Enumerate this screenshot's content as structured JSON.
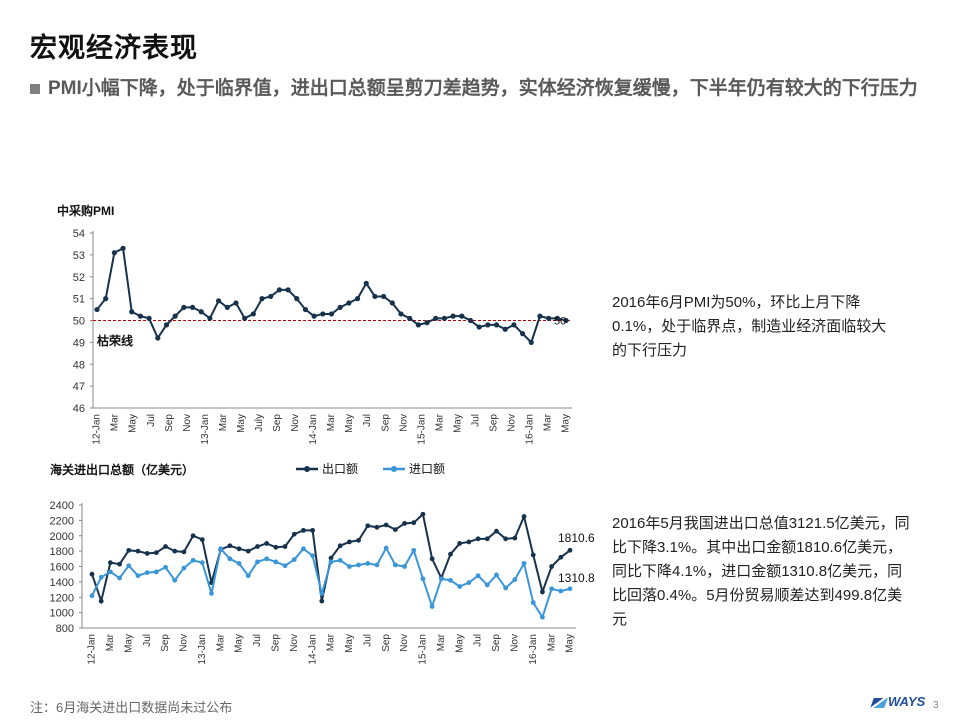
{
  "page": {
    "title": "宏观经济表现",
    "subtitle": "PMI小幅下降，处于临界值，进出口总额呈剪刀差趋势，实体经济恢复缓慢，下半年仍有较大的下行压力",
    "footnote": "注：6月海关进出口数据尚未过公布",
    "logo": "WAYS",
    "page_number": "3"
  },
  "notes": {
    "pmi": "2016年6月PMI为50%，环比上月下降0.1%，处于临界点，制造业经济面临较大的下行压力",
    "trade": "2016年5月我国进出口总值3121.5亿美元，同比下降3.1%。其中出口金额1810.6亿美元，同比下降4.1%，进口金额1310.8亿美元，同比回落0.4%。5月份贸易顺差达到499.8亿美元"
  },
  "colors": {
    "export": "#17324d",
    "import": "#3a96d8",
    "threshold": "#c00000",
    "axis": "#888888"
  },
  "chart_data": [
    {
      "type": "line",
      "title": "中采购PMI",
      "ylim": [
        46,
        54
      ],
      "yticks": [
        46,
        47,
        48,
        49,
        50,
        51,
        52,
        53,
        54
      ],
      "x_tick_labels": [
        "12-Jan",
        "Mar",
        "May",
        "Jul",
        "Sep",
        "Nov",
        "13-Jan",
        "Mar",
        "May",
        "July",
        "Sep",
        "Nov",
        "14-Jan",
        "Mar",
        "May",
        "Jul",
        "Sep",
        "Nov",
        "15-Jan",
        "Mar",
        "May",
        "Jul",
        "Sep",
        "Nov",
        "16-Jan",
        "Mar",
        "May"
      ],
      "threshold": {
        "value": 50,
        "label": "枯荣线"
      },
      "end_label": "50",
      "series": [
        {
          "values": [
            50.5,
            51.0,
            53.1,
            53.3,
            50.4,
            50.2,
            50.1,
            49.2,
            49.8,
            50.2,
            50.6,
            50.6,
            50.4,
            50.1,
            50.9,
            50.6,
            50.8,
            50.1,
            50.3,
            51.0,
            51.1,
            51.4,
            51.4,
            51.0,
            50.5,
            50.2,
            50.3,
            50.3,
            50.6,
            50.8,
            51.0,
            51.7,
            51.1,
            51.1,
            50.8,
            50.3,
            50.1,
            49.8,
            49.9,
            50.1,
            50.1,
            50.2,
            50.2,
            50.0,
            49.7,
            49.8,
            49.8,
            49.6,
            49.8,
            49.4,
            49.0,
            50.2,
            50.1,
            50.1,
            50.0
          ]
        }
      ]
    },
    {
      "type": "line",
      "title": "海关进出口总额（亿美元）",
      "ylim": [
        800,
        2400
      ],
      "yticks": [
        800,
        1000,
        1200,
        1400,
        1600,
        1800,
        2000,
        2200,
        2400
      ],
      "x_tick_labels": [
        "12-Jan",
        "Mar",
        "May",
        "Jul",
        "Sep",
        "Nov",
        "13-Jan",
        "Mar",
        "May",
        "Jul",
        "Sep",
        "Nov",
        "14-Jan",
        "Mar",
        "May",
        "Jul",
        "Sep",
        "Nov",
        "15-Jan",
        "Mar",
        "May",
        "Jul",
        "Sep",
        "Nov",
        "16-Jan",
        "Mar",
        "May"
      ],
      "end_labels": {
        "export": "1810.6",
        "import": "1310.8"
      },
      "series": [
        {
          "name": "出口额",
          "key": "export",
          "values": [
            1500,
            1150,
            1650,
            1630,
            1810,
            1800,
            1770,
            1780,
            1860,
            1800,
            1790,
            2000,
            1950,
            1390,
            1820,
            1870,
            1830,
            1800,
            1860,
            1900,
            1850,
            1860,
            2020,
            2070,
            2070,
            1150,
            1710,
            1870,
            1920,
            1940,
            2130,
            2110,
            2140,
            2080,
            2160,
            2170,
            2280,
            1700,
            1450,
            1760,
            1900,
            1920,
            1960,
            1960,
            2060,
            1960,
            1970,
            2250,
            1750,
            1270,
            1600,
            1720,
            1810.6
          ]
        },
        {
          "name": "进口额",
          "key": "import",
          "values": [
            1220,
            1460,
            1530,
            1450,
            1610,
            1480,
            1520,
            1530,
            1590,
            1420,
            1580,
            1680,
            1650,
            1250,
            1830,
            1700,
            1640,
            1480,
            1660,
            1700,
            1660,
            1610,
            1690,
            1830,
            1740,
            1250,
            1660,
            1680,
            1600,
            1620,
            1640,
            1620,
            1840,
            1620,
            1600,
            1810,
            1440,
            1080,
            1440,
            1420,
            1340,
            1390,
            1480,
            1360,
            1490,
            1320,
            1430,
            1640,
            1130,
            940,
            1310,
            1280,
            1310.8
          ]
        }
      ]
    }
  ]
}
